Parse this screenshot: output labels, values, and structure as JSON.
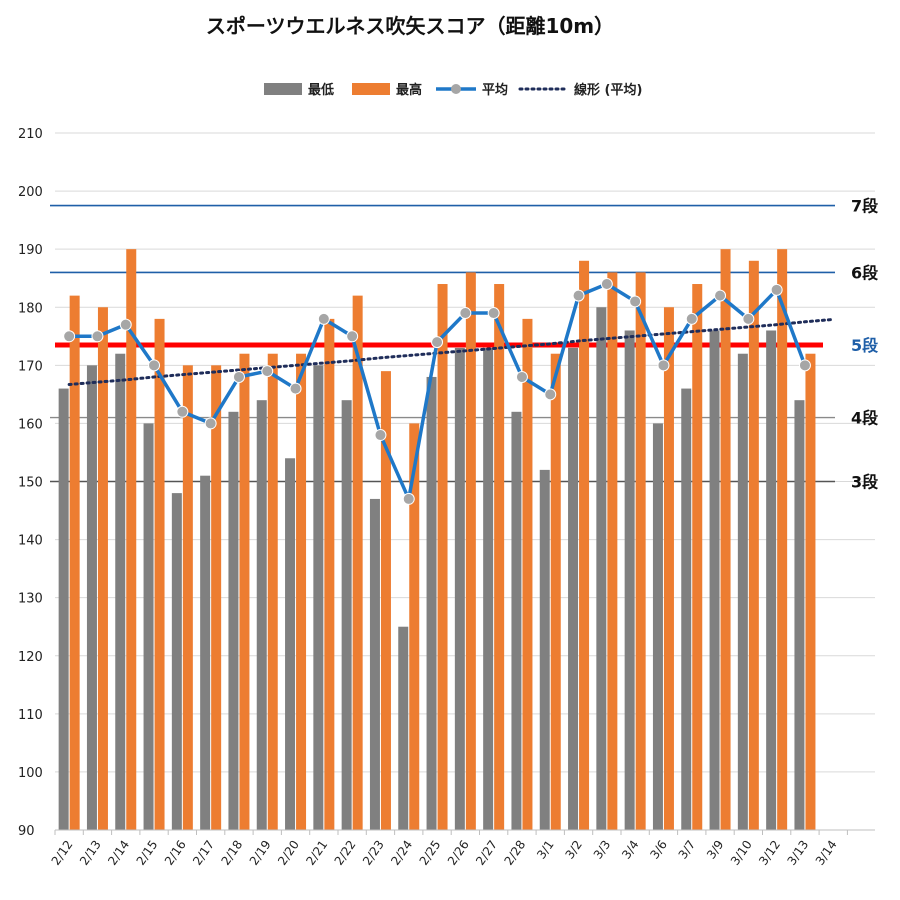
{
  "chart_data": {
    "type": "bar",
    "title": "スポーツウエルネス吹矢スコア（距離10m）",
    "xlabel": "",
    "ylabel": "",
    "ylim": [
      90,
      210
    ],
    "yticks": [
      90,
      100,
      110,
      120,
      130,
      140,
      150,
      160,
      170,
      180,
      190,
      200,
      210
    ],
    "grid": true,
    "legend_position": "top",
    "categories": [
      "2/12",
      "2/13",
      "2/14",
      "2/15",
      "2/16",
      "2/17",
      "2/18",
      "2/19",
      "2/20",
      "2/21",
      "2/22",
      "2/23",
      "2/24",
      "2/25",
      "2/26",
      "2/27",
      "2/28",
      "3/1",
      "3/2",
      "3/3",
      "3/4",
      "3/6",
      "3/7",
      "3/9",
      "3/10",
      "3/12",
      "3/13",
      "3/14"
    ],
    "series": [
      {
        "name": "最低",
        "kind": "bar",
        "color": "#808080",
        "values": [
          166,
          170,
          172,
          160,
          148,
          151,
          162,
          164,
          154,
          170,
          164,
          147,
          125,
          168,
          173,
          173,
          162,
          152,
          173,
          180,
          176,
          160,
          166,
          176,
          172,
          176,
          164,
          null
        ]
      },
      {
        "name": "最高",
        "kind": "bar",
        "color": "#ed7d31",
        "values": [
          182,
          180,
          190,
          178,
          170,
          170,
          172,
          172,
          172,
          178,
          182,
          169,
          160,
          184,
          186,
          184,
          178,
          172,
          188,
          186,
          186,
          180,
          184,
          190,
          188,
          190,
          172,
          null
        ]
      },
      {
        "name": "平均",
        "kind": "line",
        "color": "#1f78c8",
        "marker_color": "#a6a6a6",
        "values": [
          175,
          175,
          177,
          170,
          162,
          160,
          168,
          169,
          166,
          178,
          175,
          158,
          147,
          174,
          179,
          179,
          168,
          165,
          182,
          184,
          181,
          170,
          178,
          182,
          178,
          183,
          170,
          null
        ]
      },
      {
        "name": "線形 (平均)",
        "kind": "trendline",
        "color": "#1f2d5a",
        "values": [
          166.7,
          167.1,
          167.5,
          168.0,
          168.4,
          168.8,
          169.2,
          169.6,
          170.0,
          170.4,
          170.8,
          171.3,
          171.7,
          172.1,
          172.5,
          172.9,
          173.3,
          173.7,
          174.2,
          174.6,
          175.0,
          175.4,
          175.8,
          176.2,
          176.6,
          177.0,
          177.5,
          177.9
        ]
      }
    ],
    "reference_lines": [
      {
        "label": "7段",
        "value": 197.5,
        "color": "#1f5fa8",
        "label_color": "#111111"
      },
      {
        "label": "6段",
        "value": 186,
        "color": "#1f5fa8",
        "label_color": "#111111"
      },
      {
        "label": "5段",
        "value": 173.5,
        "color": "#ff0000",
        "label_color": "#1f5fa8"
      },
      {
        "label": "4段",
        "value": 161,
        "color": "#8a8a8a",
        "label_color": "#111111"
      },
      {
        "label": "3段",
        "value": 150,
        "color": "#555555",
        "label_color": "#111111"
      }
    ]
  }
}
